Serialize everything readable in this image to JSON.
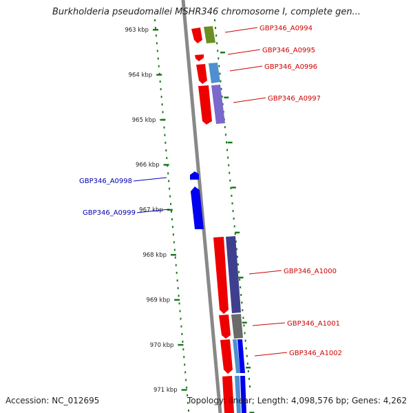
{
  "title": "Burkholderia pseudomallei MSHR346 chromosome I, complete gen...",
  "footer": {
    "accession": "Accession: NC_012695",
    "topology": "Topology: linear; Length: 4,098,576 bp; Genes: 4,262"
  },
  "kbp_ticks": [
    "963 kbp",
    "964 kbp",
    "965 kbp",
    "966 kbp",
    "967 kbp",
    "968 kbp",
    "969 kbp",
    "970 kbp",
    "971 kbp"
  ],
  "genes_forward": [
    "GBP346_A0994",
    "GBP346_A0995",
    "GBP346_A0996",
    "GBP346_A0997",
    "GBP346_A1000",
    "GBP346_A1001",
    "GBP346_A1002"
  ],
  "genes_reverse": [
    "GBP346_A0998",
    "GBP346_A0999"
  ],
  "colors": {
    "forward_label": "#cc0000",
    "reverse_label": "#0000aa",
    "cds_forward": "#ee0000",
    "cds_reverse": "#0000ee",
    "dots": "#1a7a1a",
    "backbone": "#888888"
  }
}
